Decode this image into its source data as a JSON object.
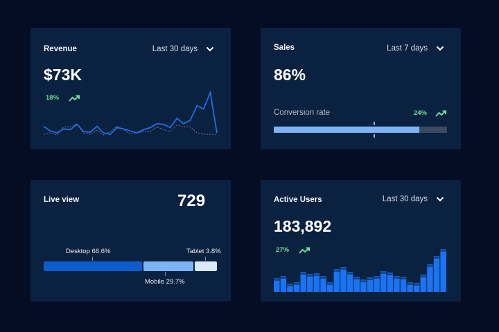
{
  "colors": {
    "background": "#050d24",
    "card": "#0b2140",
    "accent": "#1a6fe0",
    "light_accent": "#7db4f5",
    "positive": "#6fdc9a",
    "track": "#3b4b62"
  },
  "revenue": {
    "title": "Revenue",
    "range": "Last 30 days",
    "value": "$73K",
    "change": "18%",
    "trend_icon": "trend-up-icon",
    "chart_data": {
      "type": "line",
      "series": [
        {
          "values": [
            15,
            8,
            5,
            11,
            10,
            18,
            7,
            6,
            15,
            5,
            3,
            13,
            11,
            8,
            5,
            10,
            13,
            19,
            18,
            13,
            27,
            19,
            24,
            46,
            41,
            66,
            5
          ]
        },
        {
          "values": [
            3,
            5,
            2,
            14,
            14,
            19,
            4,
            3,
            9,
            2,
            7,
            15,
            10,
            3,
            5,
            7,
            7,
            14,
            10,
            7,
            17,
            14,
            14,
            5,
            3,
            3,
            3
          ]
        }
      ]
    }
  },
  "sales": {
    "title": "Sales",
    "range": "Last 7 days",
    "value": "86%",
    "metric_label": "Conversion rate",
    "change": "24%",
    "progress": 0.84,
    "target": 0.58
  },
  "live": {
    "title": "Live view",
    "value": "729",
    "segments": [
      {
        "label": "Desktop 66.6%"
      },
      {
        "label": "Mobile 29.7%"
      },
      {
        "label": "Tablet 3.8%"
      }
    ]
  },
  "users": {
    "title": "Active Users",
    "range": "Last 30 days",
    "value": "183,892",
    "change": "27%",
    "chart_data": {
      "type": "bar",
      "values": [
        20,
        23,
        12,
        14,
        29,
        26,
        27,
        23,
        14,
        33,
        36,
        29,
        22,
        18,
        21,
        23,
        30,
        28,
        23,
        22,
        14,
        13,
        25,
        40,
        52,
        62
      ]
    }
  }
}
